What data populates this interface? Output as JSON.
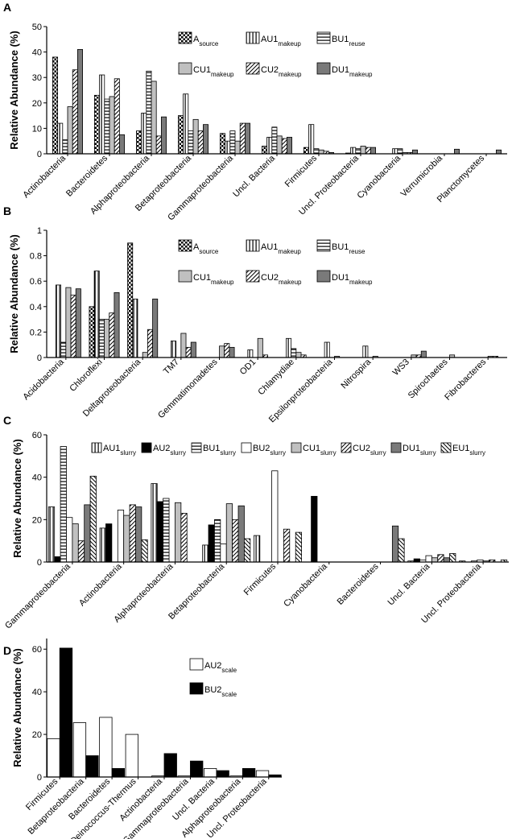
{
  "chart_data": [
    {
      "panel": "A",
      "type": "bar",
      "ylabel": "Relative Abundance (%)",
      "ylim": [
        0,
        50
      ],
      "yticks": [
        0,
        10,
        20,
        30,
        40,
        50
      ],
      "categories": [
        "Actinobacteria",
        "Bacteroidetes",
        "Alphaproteobacteria",
        "Betaproteobacteria",
        "Gammaproteobacteria",
        "Uncl. Bacteria",
        "Firmicutes",
        "Uncl. Proteobacteria",
        "Cyanobacteria",
        "Verrumicrobia",
        "Planctomycetes"
      ],
      "series": [
        {
          "name": "A",
          "sub": "source",
          "pattern": "dots",
          "values": [
            38,
            23,
            9,
            15,
            8,
            3,
            2.5,
            0.3,
            0,
            0,
            0
          ]
        },
        {
          "name": "AU1",
          "sub": "makeup",
          "pattern": "vlines",
          "values": [
            12,
            31,
            16,
            23.5,
            5,
            6.5,
            11.5,
            2.5,
            2,
            0,
            0
          ]
        },
        {
          "name": "BU1",
          "sub": "reuse",
          "pattern": "hlines",
          "values": [
            5.5,
            21.5,
            32.5,
            9,
            9,
            10.5,
            2,
            2,
            2,
            0,
            0
          ]
        },
        {
          "name": "CU1",
          "sub": "makeup",
          "pattern": "gray",
          "values": [
            18.5,
            22.5,
            28.5,
            13.5,
            5,
            7,
            1.5,
            3,
            0.5,
            0,
            0
          ]
        },
        {
          "name": "CU2",
          "sub": "makeup",
          "pattern": "diag",
          "values": [
            33,
            29.5,
            7,
            9,
            12,
            6,
            1,
            2.5,
            0.5,
            0,
            0
          ]
        },
        {
          "name": "DU1",
          "sub": "makeup",
          "pattern": "dark",
          "values": [
            41,
            7.5,
            14.5,
            11.5,
            12,
            6.5,
            0.5,
            2.5,
            1.5,
            1.8,
            1.5
          ]
        }
      ]
    },
    {
      "panel": "B",
      "type": "bar",
      "ylabel": "Relative Abundance (%)",
      "ylim": [
        0,
        1
      ],
      "yticks": [
        0,
        0.2,
        0.4,
        0.6,
        0.8,
        1
      ],
      "ytick_labels": [
        "0",
        "0.2",
        "0.4",
        "0.6",
        "0.8",
        "1"
      ],
      "categories": [
        "Acidobacteria",
        "Chloroflexi",
        "Deltaproteobacteria",
        "TM7",
        "Gemmatimonadetes",
        "OD1",
        "Chlamydiae",
        "Epsilonproteobacteria",
        "Nitrospira",
        "WS3",
        "Spirochaetes",
        "Fibrobacteres"
      ],
      "series": [
        {
          "name": "A",
          "sub": "source",
          "pattern": "dots",
          "values": [
            0,
            0.4,
            0.9,
            0,
            0,
            0,
            0,
            0,
            0,
            0,
            0,
            0
          ]
        },
        {
          "name": "AU1",
          "sub": "makeup",
          "pattern": "vlines",
          "values": [
            0.57,
            0.68,
            0.46,
            0.13,
            0,
            0.06,
            0.15,
            0.12,
            0.09,
            0,
            0,
            0
          ]
        },
        {
          "name": "BU1",
          "sub": "reuse",
          "pattern": "hlines",
          "values": [
            0.12,
            0.3,
            0,
            0,
            0,
            0,
            0.07,
            0,
            0,
            0,
            0,
            0
          ]
        },
        {
          "name": "CU1",
          "sub": "makeup",
          "pattern": "gray",
          "values": [
            0.55,
            0.3,
            0.04,
            0.19,
            0.09,
            0.15,
            0.04,
            0.01,
            0.01,
            0.02,
            0.02,
            0.01
          ]
        },
        {
          "name": "CU2",
          "sub": "makeup",
          "pattern": "diag",
          "values": [
            0.49,
            0.35,
            0.22,
            0.08,
            0.11,
            0.02,
            0.02,
            0,
            0,
            0.02,
            0,
            0.01
          ]
        },
        {
          "name": "DU1",
          "sub": "makeup",
          "pattern": "dark",
          "values": [
            0.54,
            0.51,
            0.46,
            0.12,
            0.08,
            0,
            0,
            0,
            0,
            0.05,
            0,
            0
          ]
        }
      ]
    },
    {
      "panel": "C",
      "type": "bar",
      "ylabel": "Relative Abundance (%)",
      "ylim": [
        0,
        60
      ],
      "yticks": [
        0,
        20,
        40,
        60
      ],
      "categories": [
        "Gammaproteobacteria",
        "Actinobacteria",
        "Alphaproteobacteria",
        "Betaproteobacteria",
        "Firmicutes",
        "Cyanobacteria",
        "Bacteroidetes",
        "Uncl. Bacteria",
        "Uncl. Proteobacteria"
      ],
      "series": [
        {
          "name": "AU1",
          "sub": "slurry",
          "pattern": "vlines",
          "values": [
            26,
            16,
            37,
            8,
            12.5,
            0,
            0,
            0.5,
            0.5
          ]
        },
        {
          "name": "AU2",
          "sub": "slurry",
          "pattern": "black",
          "values": [
            2.5,
            18,
            28.5,
            17.5,
            0,
            31,
            0,
            1.5,
            0
          ]
        },
        {
          "name": "BU1",
          "sub": "slurry",
          "pattern": "hlines",
          "values": [
            54.5,
            0,
            30,
            20,
            0,
            0,
            0,
            1,
            0.5
          ]
        },
        {
          "name": "BU2",
          "sub": "slurry",
          "pattern": "white",
          "values": [
            21,
            24.5,
            0,
            8.5,
            43,
            0,
            0,
            3,
            1
          ]
        },
        {
          "name": "CU1",
          "sub": "slurry",
          "pattern": "gray",
          "values": [
            18,
            22,
            28,
            27.5,
            0,
            0,
            0,
            2,
            0.5
          ]
        },
        {
          "name": "CU2",
          "sub": "slurry",
          "pattern": "diag",
          "values": [
            10,
            27,
            23,
            20,
            15.5,
            0,
            0,
            3.5,
            1
          ]
        },
        {
          "name": "DU1",
          "sub": "slurry",
          "pattern": "dark",
          "values": [
            27,
            26,
            0,
            26.5,
            0,
            0,
            17,
            2,
            0
          ]
        },
        {
          "name": "EU1",
          "sub": "slurry",
          "pattern": "antidiag",
          "values": [
            40.5,
            10.5,
            0,
            11,
            14,
            0,
            11,
            4,
            1
          ]
        }
      ]
    },
    {
      "panel": "D",
      "type": "bar",
      "ylabel": "Relative Abundance (%)",
      "ylim": [
        0,
        65
      ],
      "yticks": [
        0,
        20,
        40,
        60
      ],
      "categories": [
        "Firmicutes",
        "Betaproteobacteria",
        "Bacteroidetes",
        "Deinococcus-Thermus",
        "Actinobacteria",
        "Gammaproteobacteria",
        "Uncl. Bacteria",
        "Alphaproteobacteria",
        "Uncl. Proteobacteria"
      ],
      "series": [
        {
          "name": "AU2",
          "sub": "scale",
          "pattern": "white",
          "values": [
            18,
            25.5,
            28,
            20,
            0.5,
            0.5,
            4,
            0.5,
            3
          ]
        },
        {
          "name": "BU2",
          "sub": "scale",
          "pattern": "black",
          "values": [
            60.5,
            10,
            4,
            0,
            11,
            7.5,
            3,
            4,
            1
          ]
        }
      ]
    }
  ]
}
